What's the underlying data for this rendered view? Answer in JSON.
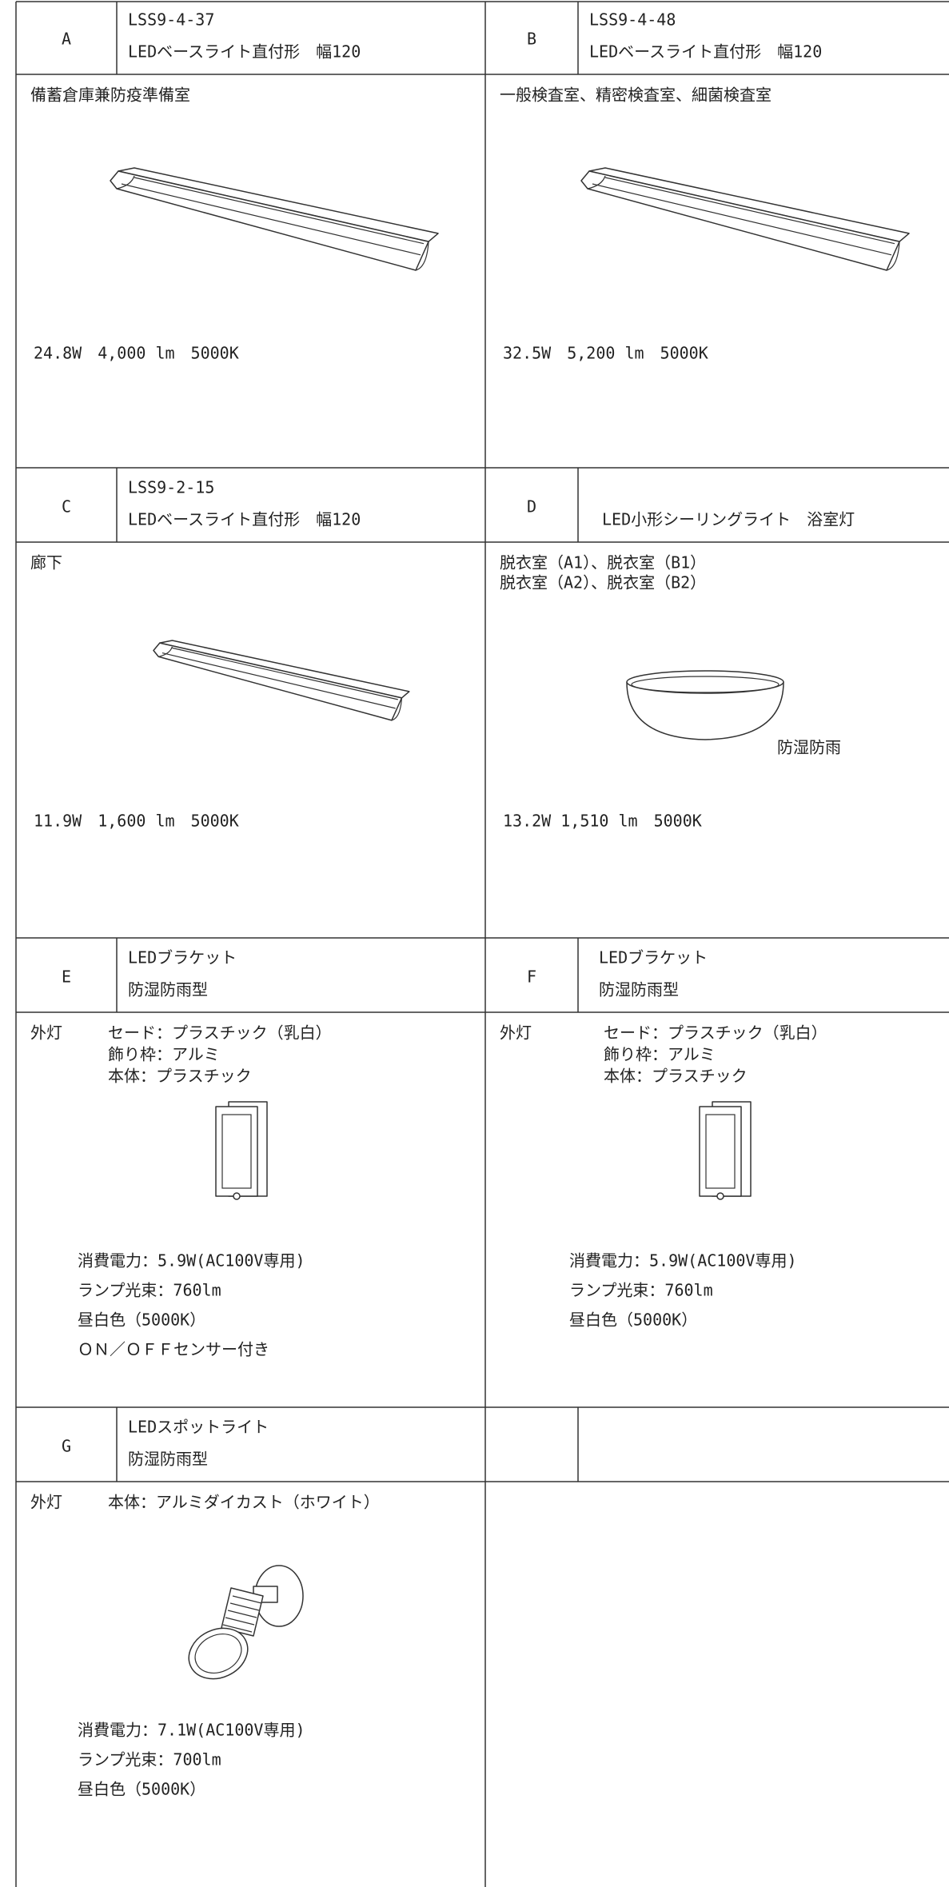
{
  "cells": [
    {
      "letter": "A",
      "header": [
        "LSS9-4-37",
        "LEDベースライト直付形　幅120"
      ],
      "rooms": [
        "備蓄倉庫兼防疫準備室"
      ],
      "specs": [
        "24.8W　4,000 lm　5000K"
      ]
    },
    {
      "letter": "B",
      "header": [
        "LSS9-4-48",
        "LEDベースライト直付形　幅120"
      ],
      "rooms": [
        "一般検査室、精密検査室、細菌検査室"
      ],
      "specs": [
        "32.5W　5,200 lm　5000K"
      ]
    },
    {
      "letter": "C",
      "header": [
        "LSS9-2-15",
        "LEDベースライト直付形　幅120"
      ],
      "rooms": [
        "廊下"
      ],
      "specs": [
        "11.9W　1,600 lm　5000K"
      ]
    },
    {
      "letter": "D",
      "header": [
        "LED小形シーリングライト　浴室灯"
      ],
      "rooms": [
        "脱衣室（A1）、脱衣室（B1）",
        "脱衣室（A2）、脱衣室（B2）"
      ],
      "note": "防湿防雨",
      "specs": [
        "13.2W 1,510 lm　5000K"
      ]
    },
    {
      "letter": "E",
      "header": [
        "LEDブラケット",
        "防湿防雨型"
      ],
      "place": "外灯",
      "rooms": [
        "セード：プラスチック（乳白）",
        "飾り枠：アルミ",
        "本体：プラスチック"
      ],
      "specs": [
        "消費電力：5.9W(AC100V専用)",
        "ランプ光束：760lm",
        "昼白色（5000K）",
        "ＯＮ／ＯＦＦセンサー付き"
      ]
    },
    {
      "letter": "F",
      "header": [
        "LEDブラケット",
        "防湿防雨型"
      ],
      "place": "外灯",
      "rooms": [
        "セード：プラスチック（乳白）",
        "飾り枠：アルミ",
        "本体：プラスチック"
      ],
      "specs": [
        "消費電力：5.9W(AC100V専用)",
        "ランプ光束：760lm",
        "昼白色（5000K）"
      ]
    },
    {
      "letter": "G",
      "header": [
        "LEDスポットライト",
        "防湿防雨型"
      ],
      "place": "外灯",
      "rooms": [
        "本体：アルミダイカスト（ホワイト）"
      ],
      "specs": [
        "消費電力：7.1W(AC100V専用)",
        "ランプ光束：700lm",
        "昼白色（5000K）"
      ]
    }
  ]
}
